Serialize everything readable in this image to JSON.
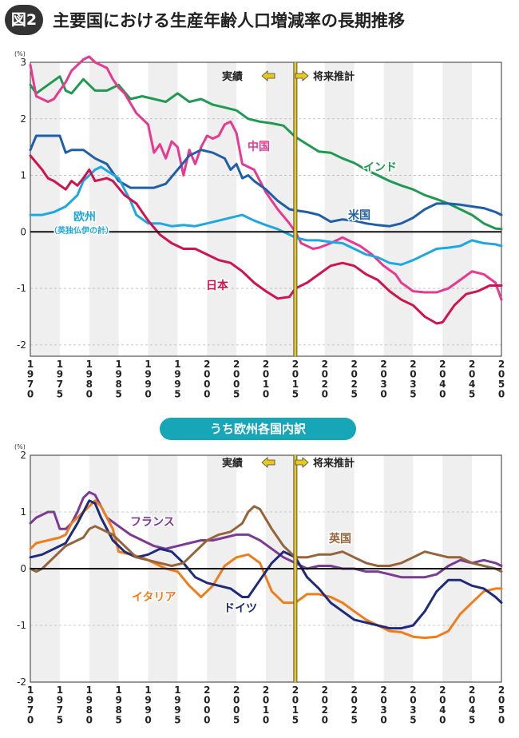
{
  "header": {
    "badge": "図2",
    "title": "主要国における生産年齢人口増減率の長期推移"
  },
  "subtitle_badge": "うち欧州各国内訳",
  "colors": {
    "japan": "#d0124e",
    "china": "#e8388f",
    "india": "#1f9a50",
    "usa": "#1f5ea8",
    "europe": "#1ea8df",
    "france": "#7b3a94",
    "italy": "#f07d1c",
    "germany": "#1f2a7a",
    "uk": "#94643a",
    "divider": "#e8c81c",
    "band": "#efefef"
  },
  "chart_data": [
    {
      "type": "line",
      "unit": "(%)",
      "xlim": [
        1970,
        2050
      ],
      "ylim": [
        -2.2,
        3
      ],
      "yticks": [
        3,
        2,
        1,
        0,
        -1,
        -2
      ],
      "xticks": [
        1970,
        1975,
        1980,
        1985,
        1990,
        1995,
        2000,
        2005,
        2010,
        2015,
        2020,
        2025,
        2030,
        2035,
        2040,
        2045,
        2050
      ],
      "divider_x": 2015,
      "annotations": {
        "actual": "実績",
        "projection": "将来推計"
      },
      "series": [
        {
          "key": "india",
          "name": "インド",
          "x": [
            1970,
            1971,
            1973,
            1975,
            1976,
            1977,
            1979,
            1981,
            1983,
            1985,
            1987,
            1989,
            1991,
            1993,
            1995,
            1997,
            1999,
            2001,
            2003,
            2005,
            2007,
            2009,
            2011,
            2013,
            2015,
            2017,
            2019,
            2021,
            2023,
            2025,
            2027,
            2029,
            2031,
            2033,
            2035,
            2037,
            2039,
            2041,
            2043,
            2045,
            2047,
            2049,
            2050
          ],
          "y": [
            2.6,
            2.45,
            2.6,
            2.75,
            2.5,
            2.45,
            2.7,
            2.5,
            2.5,
            2.6,
            2.35,
            2.4,
            2.35,
            2.3,
            2.45,
            2.3,
            2.35,
            2.25,
            2.2,
            2.15,
            2.0,
            1.95,
            1.92,
            1.88,
            1.68,
            1.55,
            1.42,
            1.4,
            1.3,
            1.22,
            1.1,
            1.0,
            0.9,
            0.82,
            0.75,
            0.65,
            0.58,
            0.5,
            0.4,
            0.3,
            0.15,
            0.06,
            0.05
          ]
        },
        {
          "key": "china",
          "name": "中国",
          "x": [
            1970,
            1971,
            1973,
            1974,
            1975,
            1976,
            1977,
            1979,
            1980,
            1981,
            1983,
            1984,
            1985,
            1986,
            1988,
            1990,
            1991,
            1992,
            1993,
            1994,
            1995,
            1996,
            1997,
            1998,
            1999,
            2000,
            2001,
            2002,
            2003,
            2004,
            2005,
            2006,
            2008,
            2010,
            2012,
            2014,
            2015,
            2016,
            2018,
            2019,
            2021,
            2023,
            2024,
            2026,
            2028,
            2030,
            2032,
            2033,
            2035,
            2037,
            2039,
            2041,
            2043,
            2045,
            2047,
            2049,
            2050
          ],
          "y": [
            2.95,
            2.4,
            2.3,
            2.35,
            2.5,
            2.65,
            2.85,
            3.05,
            3.1,
            3.0,
            2.9,
            2.7,
            2.55,
            2.45,
            2.1,
            1.9,
            1.4,
            1.55,
            1.3,
            1.6,
            1.5,
            1.0,
            1.45,
            1.2,
            1.5,
            1.7,
            1.65,
            1.7,
            1.9,
            1.95,
            1.75,
            1.2,
            1.1,
            0.7,
            0.4,
            0.15,
            0.0,
            -0.2,
            -0.3,
            -0.28,
            -0.2,
            -0.1,
            -0.15,
            -0.25,
            -0.4,
            -0.6,
            -0.75,
            -0.9,
            -1.05,
            -1.07,
            -1.07,
            -1.0,
            -0.85,
            -0.7,
            -0.75,
            -0.9,
            -1.2
          ]
        },
        {
          "key": "usa",
          "name": "米国",
          "x": [
            1970,
            1971,
            1973,
            1975,
            1976,
            1977,
            1979,
            1981,
            1983,
            1985,
            1987,
            1989,
            1991,
            1993,
            1995,
            1997,
            1999,
            2001,
            2003,
            2004,
            2005,
            2006,
            2007,
            2008,
            2010,
            2012,
            2014,
            2015,
            2017,
            2019,
            2021,
            2023,
            2025,
            2027,
            2029,
            2031,
            2033,
            2035,
            2037,
            2039,
            2041,
            2043,
            2045,
            2047,
            2049,
            2050
          ],
          "y": [
            1.45,
            1.7,
            1.7,
            1.7,
            1.4,
            1.45,
            1.45,
            1.3,
            1.2,
            0.9,
            0.78,
            0.78,
            0.78,
            0.85,
            1.1,
            1.35,
            1.45,
            1.4,
            1.3,
            1.1,
            1.2,
            0.95,
            1.0,
            0.9,
            0.75,
            0.55,
            0.4,
            0.38,
            0.35,
            0.3,
            0.18,
            0.22,
            0.2,
            0.15,
            0.12,
            0.1,
            0.15,
            0.25,
            0.4,
            0.5,
            0.5,
            0.48,
            0.45,
            0.42,
            0.35,
            0.3
          ]
        },
        {
          "key": "europe",
          "name": "欧州",
          "label_sub": "（英独仏伊の計）",
          "x": [
            1970,
            1972,
            1974,
            1976,
            1978,
            1979,
            1980,
            1981,
            1982,
            1983,
            1985,
            1987,
            1988,
            1990,
            1992,
            1994,
            1996,
            1998,
            2000,
            2002,
            2004,
            2006,
            2008,
            2010,
            2012,
            2014,
            2015,
            2017,
            2019,
            2021,
            2023,
            2025,
            2027,
            2029,
            2031,
            2033,
            2035,
            2037,
            2039,
            2041,
            2043,
            2045,
            2047,
            2049,
            2050
          ],
          "y": [
            0.3,
            0.3,
            0.35,
            0.45,
            0.65,
            0.9,
            1.0,
            1.1,
            1.15,
            1.08,
            0.95,
            0.55,
            0.3,
            0.15,
            0.15,
            0.1,
            0.12,
            0.1,
            0.15,
            0.2,
            0.25,
            0.3,
            0.2,
            0.12,
            0.05,
            -0.05,
            -0.1,
            -0.15,
            -0.15,
            -0.18,
            -0.2,
            -0.3,
            -0.4,
            -0.45,
            -0.55,
            -0.58,
            -0.5,
            -0.4,
            -0.3,
            -0.28,
            -0.25,
            -0.15,
            -0.2,
            -0.22,
            -0.25
          ]
        },
        {
          "key": "japan",
          "name": "日本",
          "x": [
            1970,
            1972,
            1973,
            1974,
            1976,
            1977,
            1978,
            1979,
            1980,
            1981,
            1983,
            1984,
            1986,
            1988,
            1990,
            1992,
            1994,
            1996,
            1998,
            2000,
            2002,
            2004,
            2006,
            2008,
            2010,
            2012,
            2014,
            2015,
            2017,
            2019,
            2021,
            2023,
            2025,
            2027,
            2029,
            2031,
            2033,
            2035,
            2037,
            2039,
            2040,
            2042,
            2044,
            2046,
            2048,
            2050
          ],
          "y": [
            1.35,
            1.1,
            0.95,
            0.9,
            0.75,
            0.9,
            0.82,
            0.95,
            1.1,
            0.9,
            0.95,
            0.9,
            0.65,
            0.5,
            0.2,
            -0.05,
            -0.2,
            -0.3,
            -0.3,
            -0.4,
            -0.5,
            -0.55,
            -0.7,
            -0.9,
            -1.05,
            -1.18,
            -1.15,
            -1.0,
            -0.9,
            -0.75,
            -0.6,
            -0.55,
            -0.6,
            -0.75,
            -0.85,
            -1.05,
            -1.2,
            -1.3,
            -1.5,
            -1.62,
            -1.6,
            -1.3,
            -1.1,
            -1.05,
            -0.95,
            -0.95
          ]
        }
      ]
    },
    {
      "type": "line",
      "unit": "(%)",
      "xlim": [
        1970,
        2050
      ],
      "ylim": [
        -2,
        2
      ],
      "yticks": [
        2,
        1,
        0,
        -1,
        -2
      ],
      "xticks": [
        1970,
        1975,
        1980,
        1985,
        1990,
        1995,
        2000,
        2005,
        2010,
        2015,
        2020,
        2025,
        2030,
        2035,
        2040,
        2045,
        2050
      ],
      "divider_x": 2015,
      "annotations": {
        "actual": "実績",
        "projection": "将来推計"
      },
      "series": [
        {
          "key": "france",
          "name": "フランス",
          "x": [
            1970,
            1971,
            1973,
            1974,
            1975,
            1976,
            1977,
            1978,
            1979,
            1980,
            1981,
            1982,
            1983,
            1985,
            1987,
            1989,
            1991,
            1993,
            1995,
            1997,
            1999,
            2001,
            2003,
            2005,
            2007,
            2009,
            2011,
            2013,
            2015,
            2017,
            2019,
            2021,
            2023,
            2025,
            2027,
            2029,
            2031,
            2033,
            2035,
            2037,
            2039,
            2041,
            2043,
            2045,
            2047,
            2049,
            2050
          ],
          "y": [
            0.8,
            0.9,
            1.0,
            1.0,
            0.7,
            0.7,
            0.8,
            1.0,
            1.25,
            1.35,
            1.3,
            1.1,
            0.9,
            0.75,
            0.6,
            0.5,
            0.4,
            0.35,
            0.4,
            0.45,
            0.5,
            0.5,
            0.55,
            0.6,
            0.6,
            0.5,
            0.35,
            0.2,
            0.1,
            0.0,
            0.05,
            0.05,
            0.0,
            0.0,
            -0.05,
            -0.05,
            -0.1,
            -0.15,
            -0.15,
            -0.15,
            -0.1,
            0.05,
            0.15,
            0.1,
            0.15,
            0.1,
            0.05
          ]
        },
        {
          "key": "italy",
          "name": "イタリア",
          "x": [
            1970,
            1971,
            1973,
            1975,
            1976,
            1977,
            1979,
            1980,
            1981,
            1982,
            1984,
            1985,
            1987,
            1989,
            1991,
            1993,
            1995,
            1997,
            1999,
            2001,
            2003,
            2005,
            2007,
            2009,
            2011,
            2013,
            2015,
            2017,
            2019,
            2021,
            2023,
            2025,
            2027,
            2029,
            2031,
            2033,
            2035,
            2037,
            2039,
            2041,
            2043,
            2045,
            2047,
            2049,
            2050
          ],
          "y": [
            0.35,
            0.45,
            0.5,
            0.55,
            0.6,
            0.8,
            1.0,
            1.1,
            1.2,
            1.1,
            0.7,
            0.3,
            0.25,
            0.2,
            0.1,
            0.0,
            -0.05,
            -0.3,
            -0.5,
            -0.3,
            0.05,
            0.2,
            0.25,
            0.1,
            -0.4,
            -0.6,
            -0.6,
            -0.45,
            -0.45,
            -0.5,
            -0.6,
            -0.75,
            -0.9,
            -1.0,
            -1.1,
            -1.12,
            -1.2,
            -1.22,
            -1.2,
            -1.1,
            -0.8,
            -0.6,
            -0.4,
            -0.35,
            -0.35
          ]
        },
        {
          "key": "germany",
          "name": "ドイツ",
          "x": [
            1970,
            1972,
            1974,
            1976,
            1978,
            1979,
            1980,
            1981,
            1982,
            1984,
            1986,
            1988,
            1990,
            1992,
            1994,
            1996,
            1998,
            2000,
            2002,
            2004,
            2006,
            2007,
            2009,
            2011,
            2013,
            2015,
            2017,
            2019,
            2021,
            2023,
            2025,
            2027,
            2029,
            2031,
            2033,
            2035,
            2037,
            2039,
            2041,
            2043,
            2045,
            2047,
            2049,
            2050
          ],
          "y": [
            0.2,
            0.25,
            0.35,
            0.45,
            0.8,
            1.0,
            1.2,
            1.15,
            0.9,
            0.5,
            0.3,
            0.2,
            0.25,
            0.35,
            0.3,
            0.1,
            -0.15,
            -0.25,
            -0.3,
            -0.35,
            -0.5,
            -0.5,
            -0.2,
            0.1,
            0.3,
            0.2,
            -0.15,
            -0.35,
            -0.6,
            -0.75,
            -0.9,
            -0.95,
            -1.0,
            -1.05,
            -1.05,
            -1.0,
            -0.75,
            -0.4,
            -0.2,
            -0.2,
            -0.3,
            -0.35,
            -0.5,
            -0.6
          ]
        },
        {
          "key": "uk",
          "name": "英国",
          "x": [
            1970,
            1971,
            1972,
            1974,
            1976,
            1978,
            1979,
            1980,
            1981,
            1982,
            1984,
            1986,
            1988,
            1990,
            1992,
            1994,
            1996,
            1998,
            2000,
            2002,
            2004,
            2006,
            2007,
            2008,
            2009,
            2011,
            2013,
            2015,
            2017,
            2019,
            2021,
            2023,
            2025,
            2027,
            2029,
            2031,
            2033,
            2035,
            2037,
            2039,
            2041,
            2043,
            2045,
            2047,
            2049,
            2050
          ],
          "y": [
            0.0,
            -0.05,
            0.0,
            0.2,
            0.4,
            0.5,
            0.55,
            0.7,
            0.75,
            0.7,
            0.6,
            0.4,
            0.2,
            0.15,
            0.1,
            0.05,
            0.1,
            0.3,
            0.5,
            0.6,
            0.65,
            0.8,
            1.0,
            1.1,
            1.05,
            0.7,
            0.4,
            0.2,
            0.2,
            0.25,
            0.25,
            0.3,
            0.2,
            0.1,
            0.05,
            0.05,
            0.1,
            0.2,
            0.3,
            0.25,
            0.2,
            0.2,
            0.1,
            0.05,
            0.0,
            -0.05
          ]
        }
      ]
    }
  ]
}
